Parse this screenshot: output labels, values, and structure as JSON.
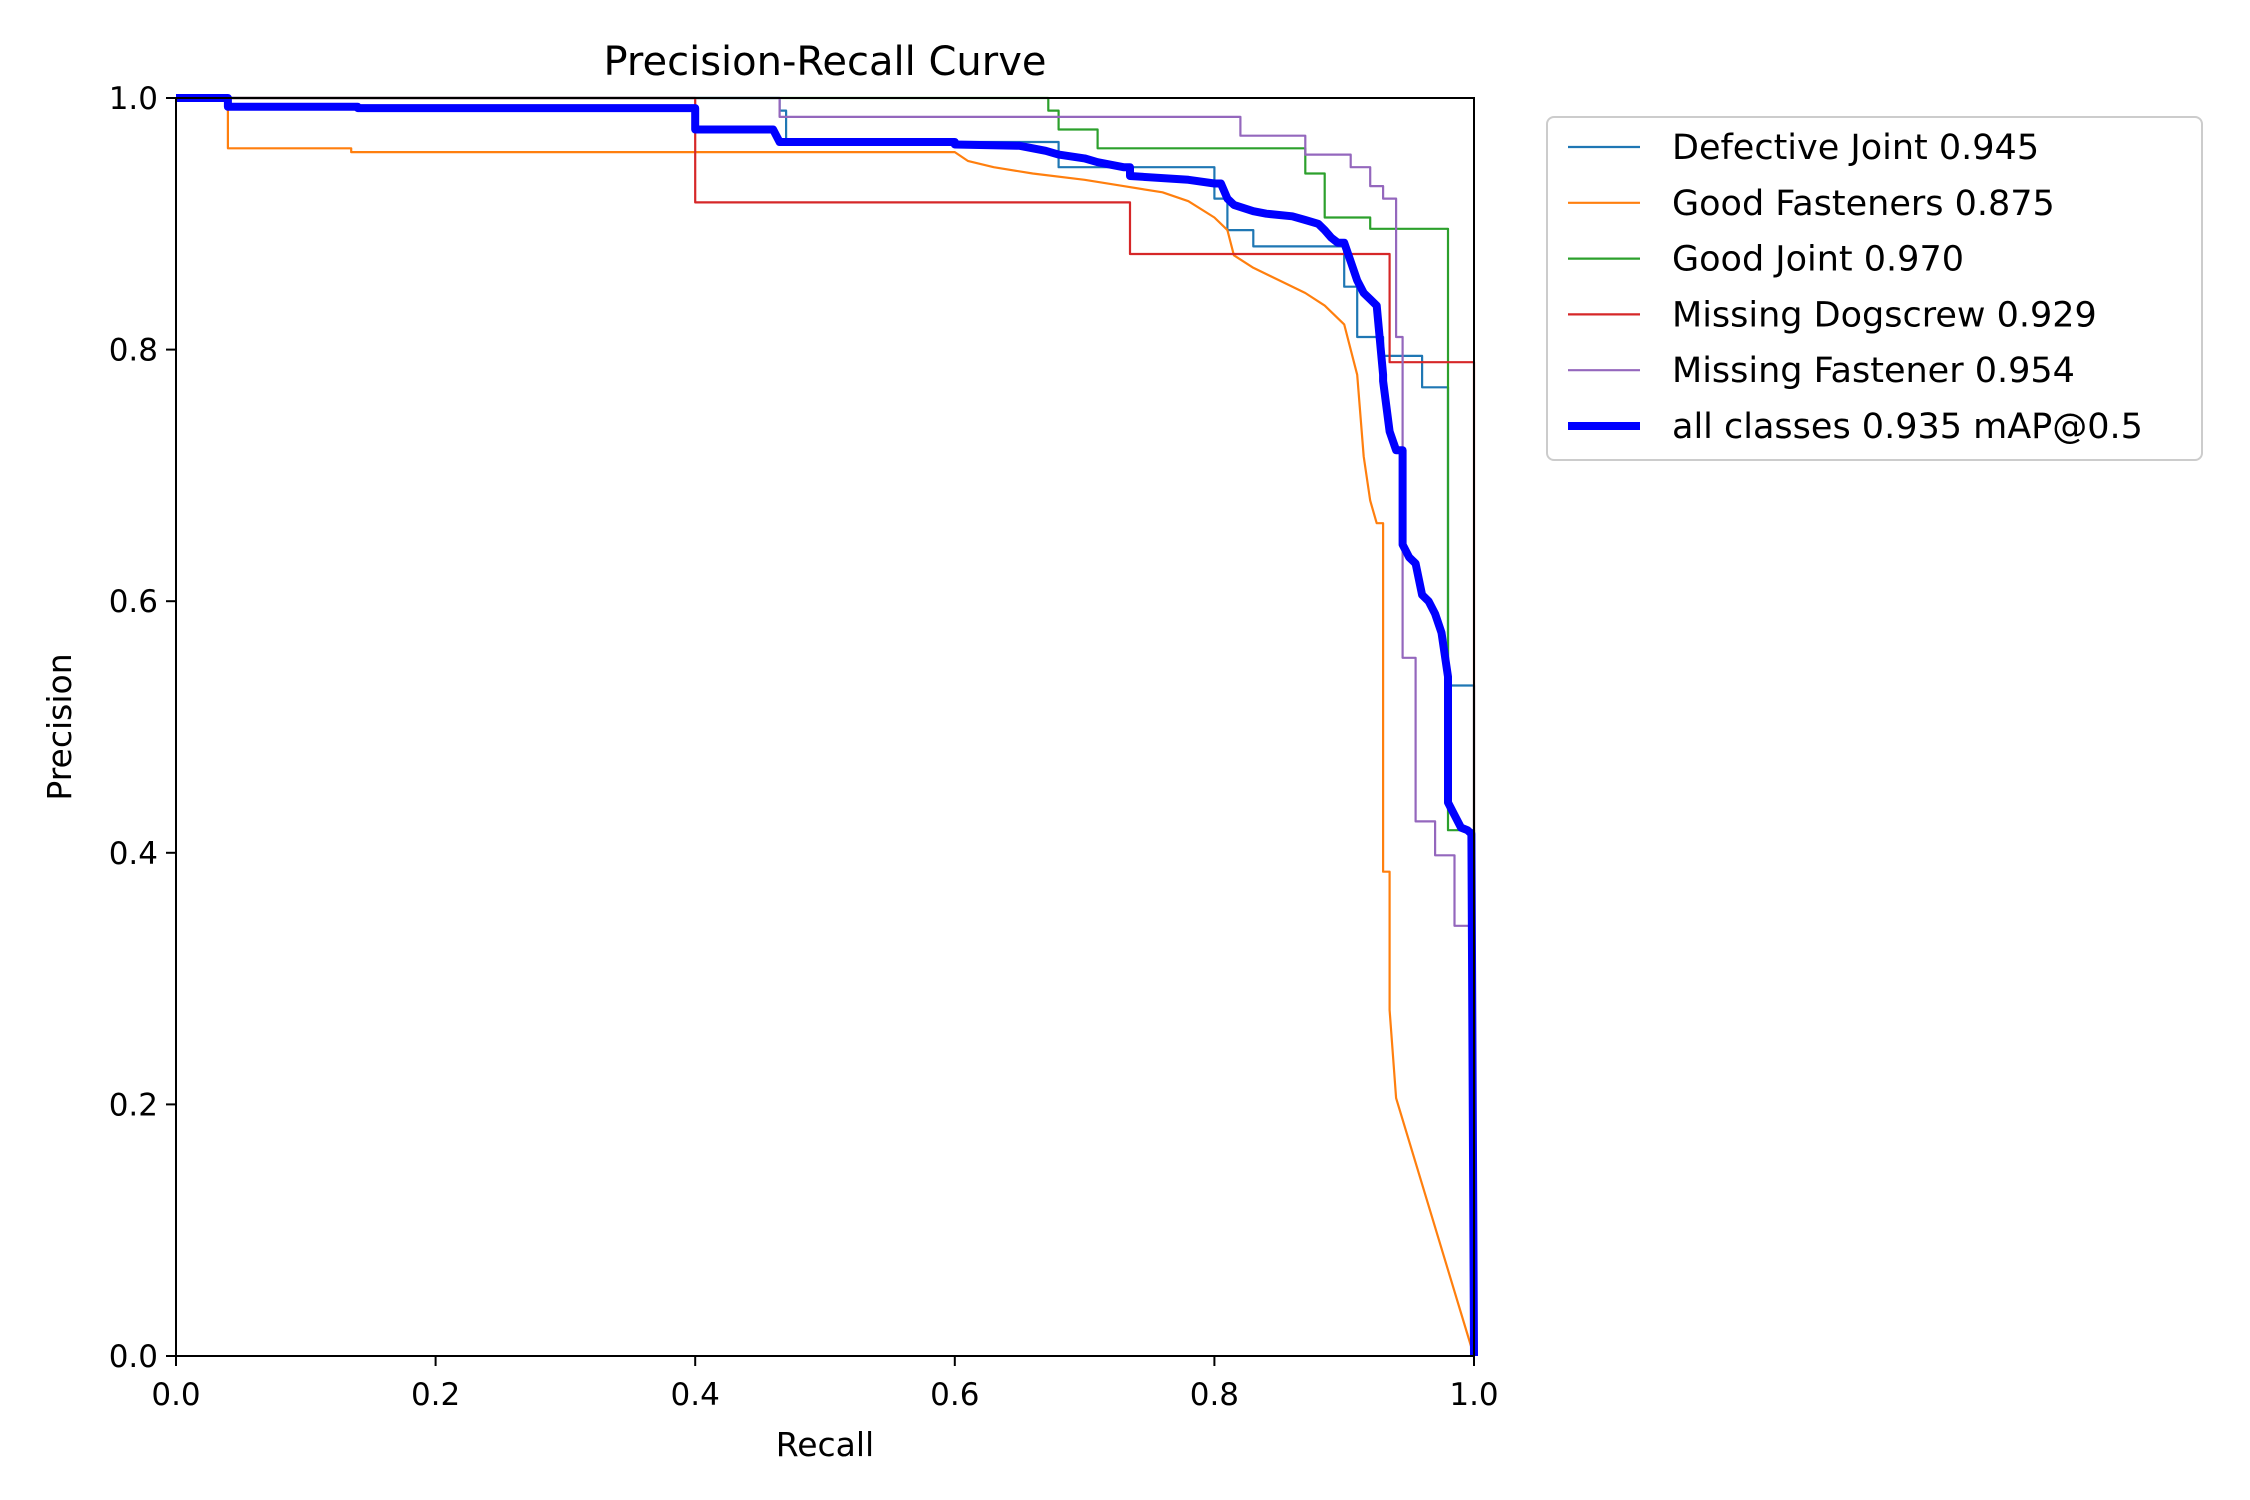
{
  "chart_data": {
    "type": "line",
    "title": "Precision-Recall Curve",
    "xlabel": "Recall",
    "ylabel": "Precision",
    "xlim": [
      0,
      1
    ],
    "ylim": [
      0,
      1
    ],
    "xticks": [
      "0.0",
      "0.2",
      "0.4",
      "0.6",
      "0.8",
      "1.0"
    ],
    "yticks": [
      "0.0",
      "0.2",
      "0.4",
      "0.6",
      "0.8",
      "1.0"
    ],
    "grid": false,
    "legend_position": "outside-top-right",
    "series": [
      {
        "name": "Defective Joint 0.945",
        "color": "#1f77b4",
        "bold": false,
        "x": [
          0,
          0.465,
          0.465,
          0.47,
          0.47,
          0.68,
          0.68,
          0.8,
          0.8,
          0.81,
          0.81,
          0.83,
          0.83,
          0.9,
          0.9,
          0.91,
          0.91,
          0.93,
          0.93,
          0.94,
          0.94,
          0.96,
          0.96,
          0.98,
          0.98,
          1.0,
          1.0
        ],
        "y": [
          1.0,
          1.0,
          0.99,
          0.99,
          0.965,
          0.965,
          0.945,
          0.945,
          0.92,
          0.92,
          0.895,
          0.895,
          0.882,
          0.882,
          0.85,
          0.85,
          0.81,
          0.81,
          0.795,
          0.795,
          0.795,
          0.795,
          0.77,
          0.77,
          0.533,
          0.533,
          0.0
        ]
      },
      {
        "name": "Good Fasteners 0.875",
        "color": "#ff7f0e",
        "bold": false,
        "x": [
          0,
          0.04,
          0.04,
          0.135,
          0.135,
          0.6,
          0.61,
          0.63,
          0.66,
          0.7,
          0.73,
          0.76,
          0.78,
          0.8,
          0.81,
          0.815,
          0.83,
          0.85,
          0.87,
          0.885,
          0.9,
          0.91,
          0.915,
          0.92,
          0.925,
          0.93,
          0.93,
          0.935,
          0.935,
          0.94,
          1.0
        ],
        "y": [
          1.0,
          1.0,
          0.96,
          0.96,
          0.957,
          0.957,
          0.95,
          0.945,
          0.94,
          0.935,
          0.93,
          0.925,
          0.918,
          0.905,
          0.895,
          0.875,
          0.865,
          0.855,
          0.845,
          0.835,
          0.82,
          0.78,
          0.715,
          0.68,
          0.662,
          0.662,
          0.385,
          0.385,
          0.275,
          0.205,
          0.0
        ]
      },
      {
        "name": "Good Joint 0.970",
        "color": "#2ca02c",
        "bold": false,
        "x": [
          0,
          0.672,
          0.672,
          0.68,
          0.68,
          0.71,
          0.71,
          0.82,
          0.82,
          0.87,
          0.87,
          0.885,
          0.885,
          0.905,
          0.905,
          0.92,
          0.92,
          0.98,
          0.98,
          1.0,
          1.0
        ],
        "y": [
          1.0,
          1.0,
          0.99,
          0.99,
          0.975,
          0.975,
          0.96,
          0.96,
          0.96,
          0.96,
          0.94,
          0.94,
          0.905,
          0.905,
          0.905,
          0.905,
          0.896,
          0.896,
          0.418,
          0.418,
          0.0
        ]
      },
      {
        "name": "Missing Dogscrew 0.929",
        "color": "#d62728",
        "bold": false,
        "x": [
          0,
          0.4,
          0.4,
          0.735,
          0.735,
          0.935,
          0.935,
          1.0,
          1.0
        ],
        "y": [
          1.0,
          1.0,
          0.917,
          0.917,
          0.876,
          0.876,
          0.79,
          0.79,
          0.0
        ]
      },
      {
        "name": "Missing Fastener 0.954",
        "color": "#9467bd",
        "bold": false,
        "x": [
          0,
          0.465,
          0.465,
          0.82,
          0.82,
          0.87,
          0.87,
          0.9,
          0.9,
          0.905,
          0.905,
          0.92,
          0.92,
          0.93,
          0.93,
          0.935,
          0.935,
          0.94,
          0.94,
          0.945,
          0.945,
          0.955,
          0.955,
          0.97,
          0.97,
          0.985,
          0.985,
          1.0,
          1.0
        ],
        "y": [
          1.0,
          1.0,
          0.985,
          0.985,
          0.97,
          0.97,
          0.955,
          0.955,
          0.955,
          0.955,
          0.945,
          0.945,
          0.93,
          0.93,
          0.92,
          0.92,
          0.92,
          0.92,
          0.81,
          0.81,
          0.555,
          0.555,
          0.425,
          0.425,
          0.398,
          0.398,
          0.342,
          0.342,
          0.0
        ]
      },
      {
        "name": "all classes 0.935 mAP@0.5",
        "color": "#0000ff",
        "bold": true,
        "x": [
          0,
          0.04,
          0.04,
          0.14,
          0.14,
          0.4,
          0.4,
          0.46,
          0.465,
          0.465,
          0.6,
          0.6,
          0.65,
          0.67,
          0.68,
          0.7,
          0.71,
          0.73,
          0.735,
          0.735,
          0.78,
          0.8,
          0.805,
          0.81,
          0.815,
          0.83,
          0.84,
          0.86,
          0.87,
          0.88,
          0.885,
          0.89,
          0.895,
          0.9,
          0.905,
          0.91,
          0.915,
          0.92,
          0.925,
          0.93,
          0.93,
          0.935,
          0.94,
          0.945,
          0.945,
          0.95,
          0.955,
          0.96,
          0.965,
          0.97,
          0.975,
          0.98,
          0.98,
          0.985,
          0.99,
          0.995,
          0.998,
          1.0
        ],
        "y": [
          1.0,
          1.0,
          0.993,
          0.993,
          0.992,
          0.992,
          0.975,
          0.975,
          0.965,
          0.965,
          0.965,
          0.963,
          0.962,
          0.958,
          0.955,
          0.952,
          0.949,
          0.945,
          0.945,
          0.938,
          0.935,
          0.932,
          0.932,
          0.92,
          0.915,
          0.91,
          0.908,
          0.906,
          0.903,
          0.9,
          0.895,
          0.889,
          0.885,
          0.885,
          0.87,
          0.855,
          0.845,
          0.84,
          0.835,
          0.78,
          0.775,
          0.735,
          0.72,
          0.72,
          0.645,
          0.635,
          0.63,
          0.605,
          0.6,
          0.59,
          0.575,
          0.54,
          0.44,
          0.43,
          0.42,
          0.418,
          0.415,
          0.0
        ]
      }
    ]
  }
}
